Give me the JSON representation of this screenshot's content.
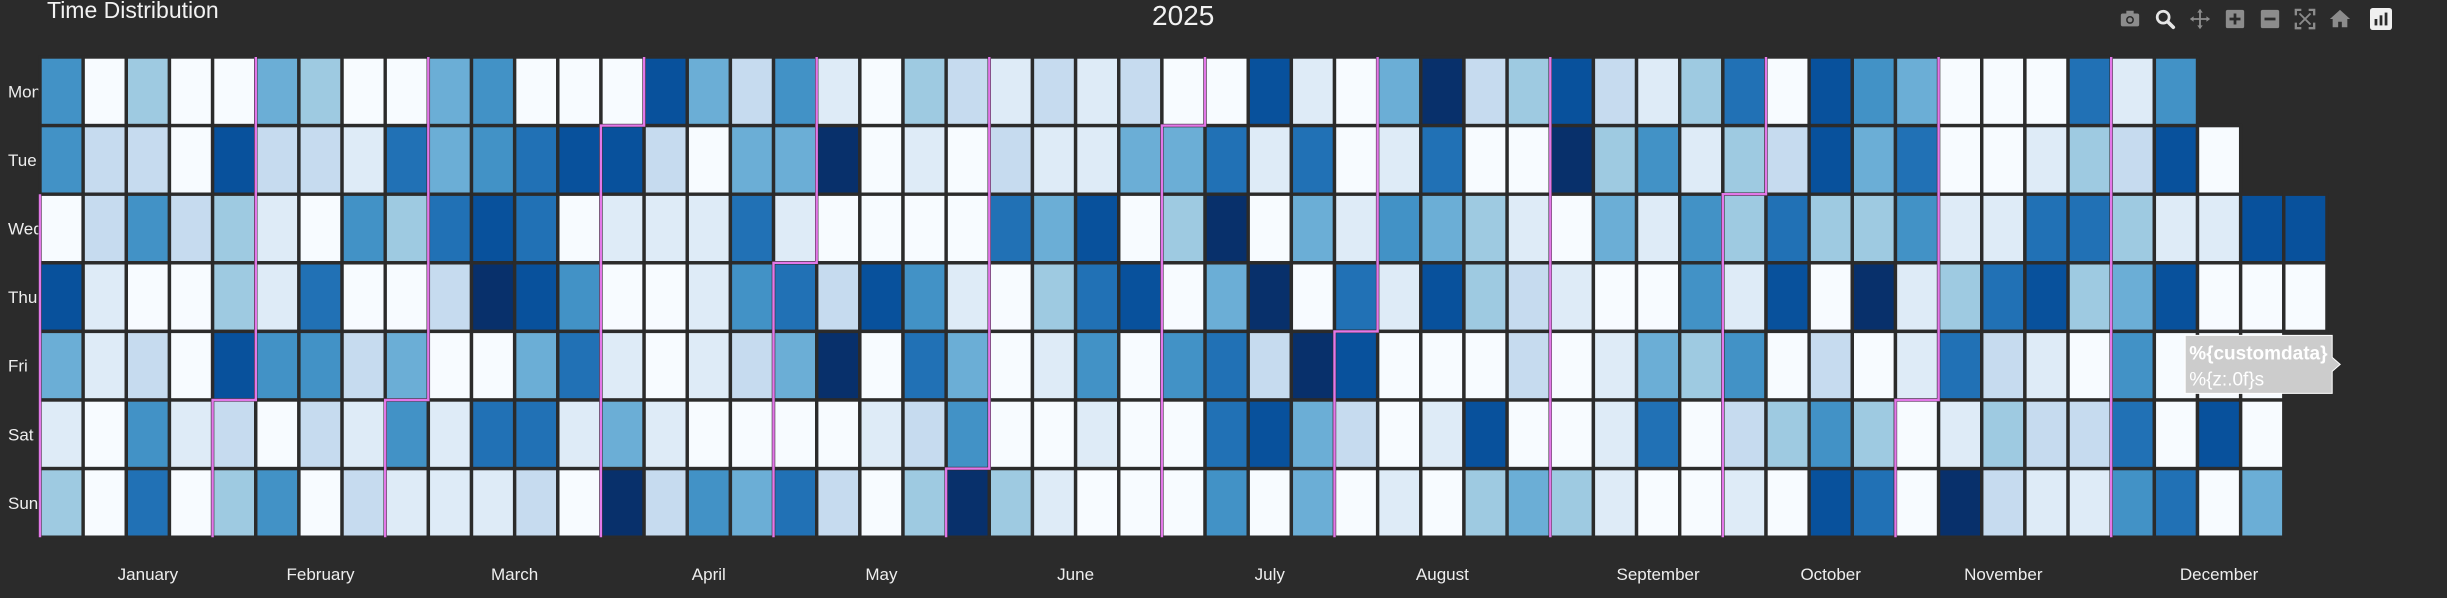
{
  "header": {
    "app_title": "Time Distribution",
    "chart_title": "2025"
  },
  "modebar": {
    "buttons": [
      {
        "name": "camera-icon",
        "label": "Download plot as a png"
      },
      {
        "name": "zoom-icon",
        "label": "Zoom"
      },
      {
        "name": "pan-icon",
        "label": "Pan"
      },
      {
        "name": "zoom-in-icon",
        "label": "Zoom in"
      },
      {
        "name": "zoom-out-icon",
        "label": "Zoom out"
      },
      {
        "name": "autoscale-icon",
        "label": "Autoscale"
      },
      {
        "name": "home-icon",
        "label": "Reset axes"
      },
      {
        "name": "plotly-logo-icon",
        "label": "Produced with Plotly"
      }
    ],
    "active": "zoom-icon",
    "icon_color": "#8c8c8c",
    "active_color": "#e6e6e6"
  },
  "chart_data": {
    "type": "heatmap",
    "title": "2025",
    "year": 2025,
    "y_categories": [
      "Mon",
      "Tue",
      "Wed",
      "Thu",
      "Fri",
      "Sat",
      "Sun"
    ],
    "months": [
      "January",
      "February",
      "March",
      "April",
      "May",
      "June",
      "July",
      "August",
      "September",
      "October",
      "November",
      "December"
    ],
    "colorscale": [
      "#f7fbff",
      "#deebf7",
      "#c6dbef",
      "#9ecae1",
      "#6baed6",
      "#4292c6",
      "#2171b5",
      "#08519c",
      "#08306b"
    ],
    "zmin": 0,
    "zmax": 8,
    "month_boundary_color": "#e377e8",
    "grid_color": "#2b2b2b",
    "values": [
      [
        5,
        0,
        3,
        0,
        0,
        4,
        3,
        0,
        0,
        4,
        5,
        0,
        0,
        0,
        7,
        4,
        2,
        5,
        1,
        0,
        3,
        2,
        1,
        2,
        1,
        2,
        0,
        0,
        7,
        1,
        0,
        4,
        8,
        2,
        3,
        7,
        2,
        1,
        3,
        6,
        0,
        7,
        5,
        4,
        0,
        0,
        0,
        6,
        1,
        5
      ],
      [
        5,
        2,
        2,
        0,
        7,
        2,
        2,
        1,
        6,
        4,
        5,
        6,
        7,
        7,
        2,
        0,
        4,
        4,
        8,
        0,
        1,
        0,
        2,
        1,
        1,
        4,
        4,
        6,
        1,
        6,
        0,
        1,
        6,
        0,
        0,
        8,
        3,
        5,
        1,
        3,
        2,
        7,
        4,
        6,
        0,
        0,
        1,
        3,
        2,
        7,
        0
      ],
      [
        0,
        2,
        5,
        2,
        3,
        1,
        0,
        5,
        3,
        6,
        7,
        6,
        0,
        1,
        1,
        1,
        6,
        1,
        0,
        0,
        0,
        0,
        6,
        4,
        7,
        0,
        3,
        8,
        0,
        4,
        1,
        5,
        4,
        3,
        1,
        0,
        4,
        1,
        5,
        3,
        6,
        3,
        3,
        5,
        1,
        1,
        6,
        6,
        3,
        1,
        1,
        7,
        7
      ],
      [
        7,
        1,
        0,
        0,
        3,
        1,
        6,
        0,
        0,
        2,
        8,
        7,
        5,
        0,
        0,
        1,
        5,
        6,
        2,
        7,
        5,
        1,
        0,
        3,
        6,
        7,
        0,
        4,
        8,
        0,
        6,
        1,
        7,
        3,
        2,
        1,
        0,
        0,
        5,
        1,
        7,
        0,
        8,
        1,
        3,
        6,
        7,
        3,
        4,
        7,
        0,
        0,
        0
      ],
      [
        4,
        1,
        2,
        0,
        7,
        5,
        5,
        2,
        4,
        0,
        0,
        4,
        6,
        1,
        0,
        1,
        2,
        4,
        8,
        0,
        6,
        4,
        0,
        1,
        5,
        0,
        5,
        6,
        2,
        8,
        7,
        0,
        0,
        0,
        2,
        0,
        1,
        4,
        3,
        5,
        0,
        2,
        0,
        1,
        6,
        2,
        1,
        0,
        5,
        0,
        0,
        0
      ],
      [
        1,
        0,
        5,
        1,
        2,
        0,
        2,
        1,
        5,
        1,
        6,
        6,
        1,
        4,
        1,
        0,
        0,
        0,
        0,
        1,
        2,
        5,
        0,
        0,
        1,
        0,
        0,
        6,
        7,
        4,
        2,
        0,
        1,
        7,
        0,
        0,
        1,
        6,
        0,
        2,
        3,
        5,
        3,
        0,
        1,
        3,
        2,
        2,
        6,
        0,
        7,
        0
      ],
      [
        3,
        0,
        6,
        0,
        3,
        5,
        0,
        2,
        1,
        1,
        1,
        2,
        0,
        8,
        2,
        5,
        4,
        6,
        2,
        0,
        3,
        8,
        3,
        1,
        0,
        0,
        0,
        5,
        0,
        4,
        0,
        1,
        0,
        3,
        4,
        3,
        1,
        0,
        0,
        1,
        0,
        7,
        6,
        0,
        8,
        2,
        1,
        1,
        5,
        6,
        0,
        4
      ]
    ],
    "hover": {
      "line1": "%{customdata}",
      "line2": "%{z:.0f}s",
      "week_index": 48,
      "weekday": "Fri",
      "background": "#cccccc"
    }
  }
}
